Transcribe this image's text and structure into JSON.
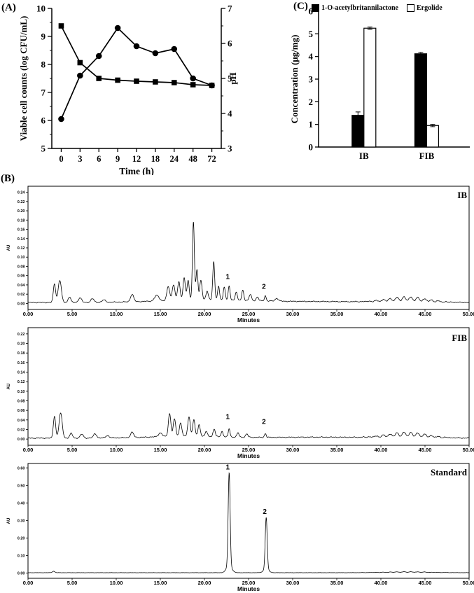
{
  "figure": {
    "panel_a_label": "(A)",
    "panel_b_label": "(B)",
    "panel_c_label": "(C)"
  },
  "chart_data": [
    {
      "id": "growth",
      "type": "line",
      "xlabel": "Time (h)",
      "ylabel_left": "Viable cell counts (log CFU/mL)",
      "ylabel_right": "pH",
      "categories": [
        "0",
        "3",
        "6",
        "9",
        "12",
        "18",
        "24",
        "48",
        "72"
      ],
      "ylim_left": [
        5,
        10
      ],
      "yticks_left": [
        5,
        6,
        7,
        8,
        9,
        10
      ],
      "ylim_right": [
        3,
        7
      ],
      "yticks_right": [
        3,
        4,
        5,
        6,
        7
      ],
      "series": [
        {
          "name": "Viable cell counts",
          "marker": "circle",
          "axis": "left",
          "values": [
            6.05,
            7.6,
            8.3,
            9.3,
            8.65,
            8.4,
            8.55,
            7.5,
            7.25
          ]
        },
        {
          "name": "pH",
          "marker": "square",
          "axis": "right",
          "values": [
            6.5,
            5.45,
            5.0,
            4.95,
            4.92,
            4.9,
            4.88,
            4.82,
            4.8
          ]
        }
      ]
    },
    {
      "id": "concentration",
      "type": "bar",
      "ylabel": "Concentration (μg/mg)",
      "categories": [
        "IB",
        "FIB"
      ],
      "ylim": [
        0,
        6
      ],
      "yticks": [
        0,
        1,
        2,
        3,
        4,
        5,
        6
      ],
      "series": [
        {
          "name": "1-O-acetylbritannilactone",
          "fill": "#000000",
          "values": [
            1.4,
            4.12
          ],
          "errors": [
            0.15,
            0.06
          ]
        },
        {
          "name": "Ergolide",
          "fill": "#ffffff",
          "values": [
            5.25,
            0.95
          ],
          "errors": [
            0.05,
            0.05
          ]
        }
      ]
    },
    {
      "id": "hplc-ib",
      "type": "line",
      "corner_label": "IB",
      "ylabel": "AU",
      "xlabel": "Minutes",
      "xlim": [
        0,
        50
      ],
      "xticks": [
        0,
        5,
        10,
        15,
        20,
        25,
        30,
        35,
        40,
        45,
        50
      ],
      "yticks": [
        0,
        0.02,
        0.04,
        0.06,
        0.08,
        0.1,
        0.12,
        0.14,
        0.16,
        0.18,
        0.2,
        0.22,
        0.24
      ],
      "ymin": -0.013,
      "ymax": 0.253,
      "base": 0.002,
      "noise": 0.0012,
      "peaks": [
        [
          3.0,
          0.04,
          0.13
        ],
        [
          3.6,
          0.048,
          0.18
        ],
        [
          4.7,
          0.012,
          0.15
        ],
        [
          5.9,
          0.01,
          0.18
        ],
        [
          7.3,
          0.008,
          0.18
        ],
        [
          8.6,
          0.005,
          0.2
        ],
        [
          11.8,
          0.016,
          0.18
        ],
        [
          14.6,
          0.012,
          0.25
        ],
        [
          15.9,
          0.03,
          0.16
        ],
        [
          16.5,
          0.034,
          0.15
        ],
        [
          17.1,
          0.04,
          0.14
        ],
        [
          17.7,
          0.048,
          0.13
        ],
        [
          18.15,
          0.042,
          0.12
        ],
        [
          18.75,
          0.168,
          0.11
        ],
        [
          19.15,
          0.065,
          0.11
        ],
        [
          19.6,
          0.042,
          0.13
        ],
        [
          20.3,
          0.018,
          0.13
        ],
        [
          21.05,
          0.082,
          0.11
        ],
        [
          21.6,
          0.028,
          0.11
        ],
        [
          22.25,
          0.028,
          0.11
        ],
        [
          22.8,
          0.03,
          0.1
        ],
        [
          23.6,
          0.018,
          0.11
        ],
        [
          24.35,
          0.022,
          0.11
        ],
        [
          25.2,
          0.013,
          0.13
        ],
        [
          26.0,
          0.008,
          0.13
        ],
        [
          26.9,
          0.011,
          0.1
        ],
        [
          28.2,
          0.006,
          0.18
        ]
      ],
      "humps": [
        [
          20,
          5,
          0.006,
          0,
          0
        ],
        [
          33,
          6,
          0.002,
          0,
          0
        ],
        [
          43,
          2.2,
          0.008,
          8,
          0.5
        ]
      ],
      "peak_labels": [
        {
          "text": "1",
          "t": 22.8
        },
        {
          "text": "2",
          "t": 26.9
        }
      ],
      "label_dy": -10
    },
    {
      "id": "hplc-fib",
      "type": "line",
      "corner_label": "FIB",
      "ylabel": "AU",
      "xlabel": "Minutes",
      "xlim": [
        0,
        50
      ],
      "xticks": [
        0,
        5,
        10,
        15,
        20,
        25,
        30,
        35,
        40,
        45,
        50
      ],
      "yticks": [
        0,
        0.02,
        0.04,
        0.06,
        0.08,
        0.1,
        0.12,
        0.14,
        0.16,
        0.18,
        0.2,
        0.22
      ],
      "ymin": -0.013,
      "ymax": 0.233,
      "base": 0.002,
      "noise": 0.0012,
      "peaks": [
        [
          3.0,
          0.046,
          0.13
        ],
        [
          3.7,
          0.052,
          0.18
        ],
        [
          4.9,
          0.01,
          0.15
        ],
        [
          6.1,
          0.008,
          0.18
        ],
        [
          7.6,
          0.009,
          0.18
        ],
        [
          9.0,
          0.005,
          0.2
        ],
        [
          11.8,
          0.011,
          0.18
        ],
        [
          15.0,
          0.008,
          0.2
        ],
        [
          16.05,
          0.048,
          0.14
        ],
        [
          16.6,
          0.036,
          0.14
        ],
        [
          17.3,
          0.028,
          0.14
        ],
        [
          18.25,
          0.04,
          0.14
        ],
        [
          18.8,
          0.034,
          0.13
        ],
        [
          19.4,
          0.024,
          0.13
        ],
        [
          20.2,
          0.01,
          0.13
        ],
        [
          21.1,
          0.016,
          0.12
        ],
        [
          22.0,
          0.011,
          0.12
        ],
        [
          22.8,
          0.017,
          0.1
        ],
        [
          23.8,
          0.009,
          0.12
        ],
        [
          24.8,
          0.007,
          0.13
        ],
        [
          26.9,
          0.008,
          0.1
        ]
      ],
      "humps": [
        [
          18,
          4,
          0.004,
          0,
          0
        ],
        [
          33,
          6,
          0.002,
          0,
          0
        ],
        [
          43,
          2.2,
          0.008,
          8,
          0.5
        ]
      ],
      "peak_labels": [
        {
          "text": "1",
          "t": 22.8
        },
        {
          "text": "2",
          "t": 26.9
        }
      ],
      "label_dy": -14
    },
    {
      "id": "hplc-standard",
      "type": "line",
      "corner_label": "Standard",
      "ylabel": "AU",
      "xlabel": "Minutes",
      "xlim": [
        0,
        50
      ],
      "xticks": [
        0,
        5,
        10,
        15,
        20,
        25,
        30,
        35,
        40,
        45,
        50
      ],
      "yticks": [
        0,
        0.1,
        0.2,
        0.3,
        0.4,
        0.5,
        0.6
      ],
      "ymin": -0.03,
      "ymax": 0.625,
      "base": 0.002,
      "noise": 0.0008,
      "peaks": [
        [
          2.9,
          0.008,
          0.15
        ],
        [
          22.8,
          0.53,
          0.11
        ],
        [
          22.8,
          0.04,
          0.3
        ],
        [
          27.0,
          0.295,
          0.11
        ],
        [
          27.0,
          0.02,
          0.3
        ]
      ],
      "humps": [
        [
          43,
          2.5,
          0.004,
          8,
          0.4
        ]
      ],
      "peak_labels": [
        {
          "text": "1",
          "t": 22.8
        },
        {
          "text": "2",
          "t": 27.0
        }
      ],
      "label_dy": -5
    }
  ]
}
